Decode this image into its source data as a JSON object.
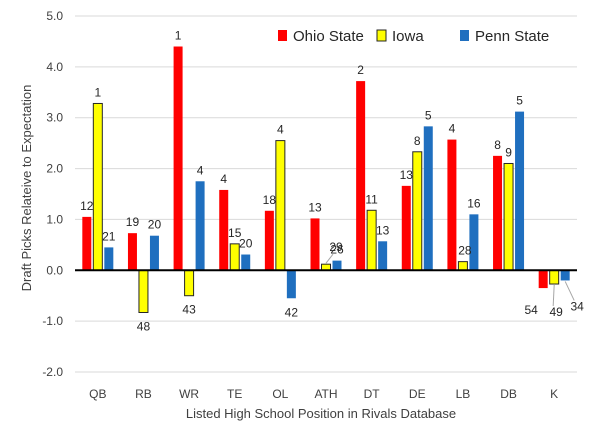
{
  "chart_data": {
    "type": "bar",
    "title": "",
    "xlabel": "Listed High School Position in Rivals Database",
    "ylabel": "Draft Picks Relateive to Expectation",
    "categories": [
      "QB",
      "RB",
      "WR",
      "TE",
      "OL",
      "ATH",
      "DT",
      "DE",
      "LB",
      "DB",
      "K"
    ],
    "ylim": [
      -2.0,
      5.0
    ],
    "yticks": [
      "-2.0",
      "-1.0",
      "0.0",
      "1.0",
      "2.0",
      "3.0",
      "4.0",
      "5.0"
    ],
    "ytick_values": [
      -2,
      -1,
      0,
      1,
      2,
      3,
      4,
      5
    ],
    "grid": true,
    "legend_position": "top-right",
    "series": [
      {
        "name": "Ohio State",
        "color": "#ff0000",
        "values": [
          1.05,
          0.73,
          4.4,
          1.58,
          1.17,
          1.02,
          3.72,
          1.66,
          2.57,
          2.25,
          -0.35
        ],
        "labels": [
          "12",
          "19",
          "1",
          "4",
          "18",
          "13",
          "2",
          "13",
          "4",
          "8",
          "54"
        ]
      },
      {
        "name": "Iowa",
        "color": "#ffff00",
        "values": [
          3.28,
          -0.83,
          -0.5,
          0.52,
          2.55,
          0.12,
          1.18,
          2.33,
          0.17,
          2.1,
          -0.27
        ],
        "labels": [
          "1",
          "48",
          "43",
          "15",
          "4",
          "29",
          "11",
          "8",
          "28",
          "9",
          "49"
        ]
      },
      {
        "name": "Penn State",
        "color": "#1f6fbf",
        "values": [
          0.45,
          0.68,
          1.75,
          0.31,
          -0.55,
          0.19,
          0.57,
          2.83,
          1.1,
          3.12,
          -0.2
        ],
        "labels": [
          "21",
          "20",
          "4",
          "20",
          "42",
          "26",
          "13",
          "5",
          "16",
          "5",
          "34"
        ]
      }
    ]
  }
}
